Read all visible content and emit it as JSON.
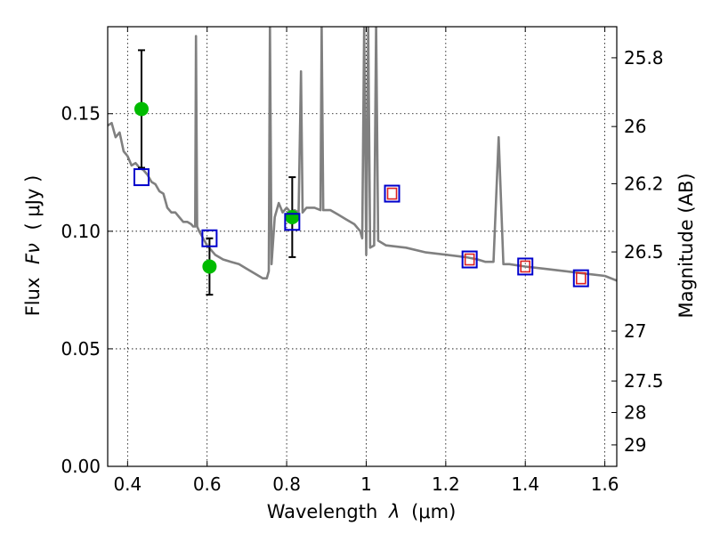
{
  "chart_data": {
    "type": "scatter",
    "title": "",
    "xlabel": "Wavelength",
    "xlabel_symbol": "λ",
    "xlabel_unit": "(μm)",
    "ylabel": "Flux",
    "ylabel_symbol": "Fν",
    "ylabel_unit": "( μJy )",
    "y2label": "Magnitude (AB)",
    "xlim": [
      0.35,
      1.63
    ],
    "ylim": [
      0.0,
      0.187
    ],
    "grid": true,
    "x_ticks": [
      {
        "value": 0.4,
        "label": "0.4"
      },
      {
        "value": 0.6,
        "label": "0.6"
      },
      {
        "value": 0.8,
        "label": "0.8"
      },
      {
        "value": 1.0,
        "label": "1"
      },
      {
        "value": 1.2,
        "label": "1.2"
      },
      {
        "value": 1.4,
        "label": "1.4"
      },
      {
        "value": 1.6,
        "label": "1.6"
      }
    ],
    "y_ticks": [
      {
        "value": 0.0,
        "label": "0.00"
      },
      {
        "value": 0.05,
        "label": "0.05"
      },
      {
        "value": 0.1,
        "label": "0.10"
      },
      {
        "value": 0.15,
        "label": "0.15"
      }
    ],
    "y2_ticks": [
      {
        "value": 25.8,
        "label": "25.8"
      },
      {
        "value": 26.0,
        "label": "26"
      },
      {
        "value": 26.2,
        "label": "26.2"
      },
      {
        "value": 26.5,
        "label": "26.5"
      },
      {
        "value": 27.0,
        "label": "27"
      },
      {
        "value": 27.5,
        "label": "27.5"
      },
      {
        "value": 28.0,
        "label": "28"
      },
      {
        "value": 29.0,
        "label": "29"
      }
    ],
    "model_spectrum": {
      "color": "#808080",
      "points": [
        [
          0.35,
          0.145
        ],
        [
          0.36,
          0.146
        ],
        [
          0.37,
          0.14
        ],
        [
          0.38,
          0.142
        ],
        [
          0.39,
          0.134
        ],
        [
          0.4,
          0.132
        ],
        [
          0.41,
          0.128
        ],
        [
          0.42,
          0.129
        ],
        [
          0.43,
          0.127
        ],
        [
          0.44,
          0.126
        ],
        [
          0.45,
          0.124
        ],
        [
          0.46,
          0.121
        ],
        [
          0.47,
          0.12
        ],
        [
          0.48,
          0.117
        ],
        [
          0.49,
          0.116
        ],
        [
          0.5,
          0.11
        ],
        [
          0.51,
          0.108
        ],
        [
          0.52,
          0.108
        ],
        [
          0.53,
          0.106
        ],
        [
          0.54,
          0.104
        ],
        [
          0.55,
          0.104
        ],
        [
          0.56,
          0.103
        ],
        [
          0.565,
          0.102
        ],
        [
          0.57,
          0.102
        ],
        [
          0.572,
          0.183
        ],
        [
          0.575,
          0.102
        ],
        [
          0.58,
          0.1
        ],
        [
          0.6,
          0.094
        ],
        [
          0.62,
          0.09
        ],
        [
          0.64,
          0.088
        ],
        [
          0.66,
          0.087
        ],
        [
          0.68,
          0.086
        ],
        [
          0.7,
          0.084
        ],
        [
          0.72,
          0.082
        ],
        [
          0.74,
          0.08
        ],
        [
          0.75,
          0.08
        ],
        [
          0.755,
          0.083
        ],
        [
          0.758,
          0.188
        ],
        [
          0.762,
          0.086
        ],
        [
          0.77,
          0.106
        ],
        [
          0.78,
          0.112
        ],
        [
          0.79,
          0.108
        ],
        [
          0.8,
          0.11
        ],
        [
          0.81,
          0.108
        ],
        [
          0.82,
          0.109
        ],
        [
          0.83,
          0.108
        ],
        [
          0.836,
          0.168
        ],
        [
          0.84,
          0.108
        ],
        [
          0.85,
          0.11
        ],
        [
          0.87,
          0.11
        ],
        [
          0.885,
          0.109
        ],
        [
          0.888,
          0.188
        ],
        [
          0.892,
          0.109
        ],
        [
          0.91,
          0.109
        ],
        [
          0.93,
          0.107
        ],
        [
          0.95,
          0.105
        ],
        [
          0.97,
          0.103
        ],
        [
          0.985,
          0.1
        ],
        [
          0.99,
          0.097
        ],
        [
          0.995,
          0.188
        ],
        [
          1.0,
          0.09
        ],
        [
          1.005,
          0.188
        ],
        [
          1.01,
          0.093
        ],
        [
          1.02,
          0.094
        ],
        [
          1.025,
          0.188
        ],
        [
          1.03,
          0.096
        ],
        [
          1.05,
          0.094
        ],
        [
          1.1,
          0.093
        ],
        [
          1.15,
          0.091
        ],
        [
          1.2,
          0.09
        ],
        [
          1.25,
          0.089
        ],
        [
          1.28,
          0.088
        ],
        [
          1.3,
          0.087
        ],
        [
          1.32,
          0.087
        ],
        [
          1.333,
          0.14
        ],
        [
          1.345,
          0.086
        ],
        [
          1.36,
          0.086
        ],
        [
          1.4,
          0.085
        ],
        [
          1.45,
          0.084
        ],
        [
          1.5,
          0.083
        ],
        [
          1.55,
          0.082
        ],
        [
          1.6,
          0.081
        ],
        [
          1.63,
          0.079
        ]
      ]
    },
    "series": [
      {
        "marker": "circle",
        "color": "#00bb00",
        "points": [
          {
            "x": 0.435,
            "y": 0.152,
            "err": 0.025
          },
          {
            "x": 0.606,
            "y": 0.085,
            "err": 0.012
          },
          {
            "x": 0.814,
            "y": 0.106,
            "err": 0.017
          }
        ]
      },
      {
        "marker": "square",
        "color": "#0000cc",
        "points": [
          {
            "x": 0.435,
            "y": 0.123
          },
          {
            "x": 0.606,
            "y": 0.097
          },
          {
            "x": 0.814,
            "y": 0.104
          },
          {
            "x": 1.065,
            "y": 0.116
          },
          {
            "x": 1.26,
            "y": 0.088
          },
          {
            "x": 1.4,
            "y": 0.085
          },
          {
            "x": 1.54,
            "y": 0.08
          }
        ]
      },
      {
        "marker": "square-small",
        "color": "#dd2222",
        "points": [
          {
            "x": 1.065,
            "y": 0.116
          },
          {
            "x": 1.26,
            "y": 0.088
          },
          {
            "x": 1.4,
            "y": 0.085
          },
          {
            "x": 1.54,
            "y": 0.08
          }
        ]
      }
    ]
  }
}
